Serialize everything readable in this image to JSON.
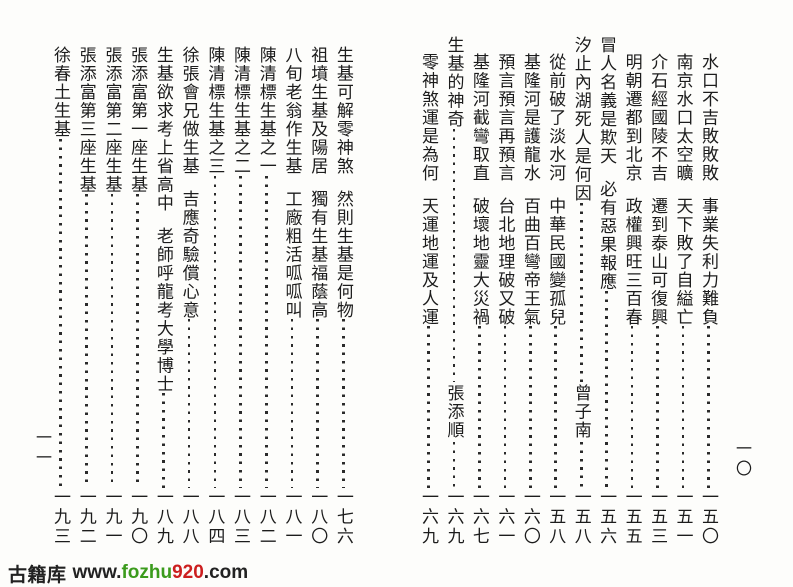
{
  "right_page": {
    "page_label": "一〇",
    "entries": [
      {
        "title": "水口不吉敗敗敗",
        "sub": "事業失利力難負",
        "page": "一五〇"
      },
      {
        "title": "南京水口太空曠",
        "sub": "天下敗了自縊亡",
        "page": "一五一"
      },
      {
        "title": "介石經國陵不吉",
        "sub": "遷到泰山可復興",
        "page": "一五三"
      },
      {
        "title": "明朝遷都到北京",
        "sub": "政權興旺三百春",
        "page": "一五五"
      },
      {
        "title": "冒人名義是欺天",
        "sub": "必有惡果報應",
        "page": "一五六",
        "header": true
      },
      {
        "title": "汐止內湖死人是何因",
        "name": "曾子南",
        "page": "一五八",
        "header": true
      },
      {
        "title": "從前破了淡水河",
        "sub": "中華民國變孤兒",
        "page": "一五八"
      },
      {
        "title": "基隆河是護龍水",
        "sub": "百曲百彎帝王氣",
        "page": "一六〇"
      },
      {
        "title": "預言預言再預言",
        "sub": "台北地理破又破",
        "page": "一六一"
      },
      {
        "title": "基隆河截彎取直",
        "sub": "破壞地靈大災禍",
        "page": "一六七"
      },
      {
        "title": "生基的神奇",
        "name": "張添順",
        "page": "一六九",
        "header": true
      },
      {
        "title": "零神煞運是為何",
        "sub": "天運地運及人運",
        "page": "一六九"
      }
    ]
  },
  "left_page": {
    "page_label": "一一",
    "entries": [
      {
        "title": "生基可解零神煞",
        "sub": "然則生基是何物",
        "page": "一七六"
      },
      {
        "title": "祖墳生基及陽居",
        "sub": "獨有生基福蔭高",
        "page": "一八〇"
      },
      {
        "title": "八旬老翁作生基",
        "sub": "工廠粗活呱呱叫",
        "page": "一八一"
      },
      {
        "title": "陳清標生基之一",
        "page": "一八二"
      },
      {
        "title": "陳清標生基之二",
        "page": "一八三"
      },
      {
        "title": "陳清標生基之三",
        "page": "一八四"
      },
      {
        "title": "徐張會兄做生基",
        "sub": "吉應奇驗償心意",
        "page": "一八八"
      },
      {
        "title": "生基欲求考上省高中",
        "sub": "老師呼龍考大學博士",
        "page": "一八九"
      },
      {
        "title": "張添富第一座生基",
        "page": "一九〇"
      },
      {
        "title": "張添富第二座生基",
        "page": "一九一"
      },
      {
        "title": "張添富第三座生基",
        "page": "一九二"
      },
      {
        "title": "徐春土生基",
        "page": "一九三"
      }
    ]
  },
  "watermark": {
    "library": "古籍库",
    "url_prefix": "www.",
    "url_name": "fozhu",
    "url_number": "920",
    "url_suffix": ".com",
    "colors": {
      "name_green": "#3b9b1c",
      "number_red": "#cc1f1f",
      "text_dark": "#222222"
    }
  }
}
